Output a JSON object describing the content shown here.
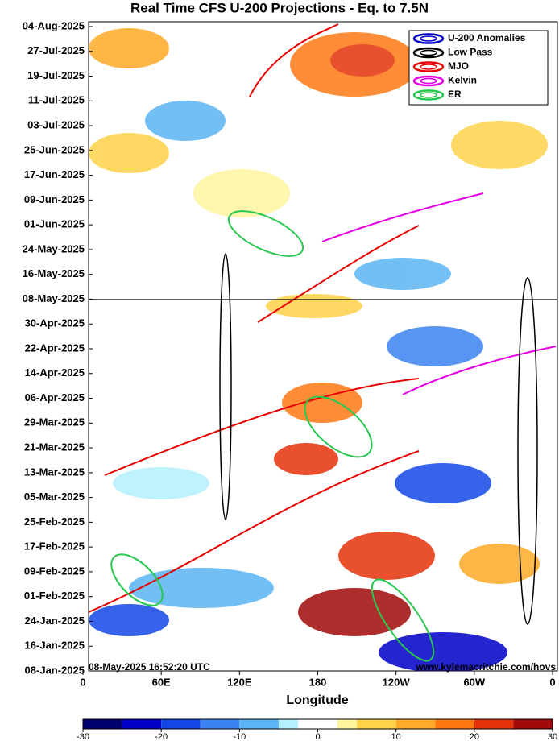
{
  "chart_data": {
    "type": "hovmoller",
    "title": "Real Time CFS U-200 Projections - Eq. to 7.5N",
    "x_label": "Longitude",
    "xlim": [
      0,
      360
    ],
    "xticks": [
      0,
      {
        "value": 60,
        "label": "60E"
      },
      {
        "value": 120,
        "label": "120E"
      },
      180,
      {
        "value": 240,
        "label": "120W"
      },
      {
        "value": 300,
        "label": "60W"
      },
      {
        "value": 360,
        "label": "0"
      }
    ],
    "categories": [
      "04-Aug-2025",
      "27-Jul-2025",
      "19-Jul-2025",
      "11-Jul-2025",
      "03-Jul-2025",
      "25-Jun-2025",
      "17-Jun-2025",
      "09-Jun-2025",
      "01-Jun-2025",
      "24-May-2025",
      "16-May-2025",
      "08-May-2025",
      "30-Apr-2025",
      "22-Apr-2025",
      "14-Apr-2025",
      "06-Apr-2025",
      "29-Mar-2025",
      "21-Mar-2025",
      "13-Mar-2025",
      "05-Mar-2025",
      "25-Feb-2025",
      "17-Feb-2025",
      "09-Feb-2025",
      "01-Feb-2025",
      "24-Jan-2025",
      "16-Jan-2025",
      "08-Jan-2025"
    ],
    "legend": [
      {
        "name": "U-200 Anomalies",
        "color": "#0000c8"
      },
      {
        "name": "Low Pass",
        "color": "#000000"
      },
      {
        "name": "MJO",
        "color": "#e60000"
      },
      {
        "name": "Kelvin",
        "color": "#e600e6"
      },
      {
        "name": "ER",
        "color": "#28c850"
      }
    ],
    "annotations": [
      "08-May-2025 16:52:20 UTC",
      "www.kylemacritchie.com/hovs"
    ],
    "colorbar": {
      "bins": [
        -30,
        -25,
        -20,
        -15,
        -10,
        -5,
        -2.5,
        2.5,
        5,
        10,
        15,
        20,
        25,
        30
      ],
      "colors": [
        "#00006e",
        "#0000c8",
        "#1446e6",
        "#3c82f0",
        "#5ab4f5",
        "#b4f0ff",
        "#ffffff",
        "#fff5a0",
        "#ffd24a",
        "#ffaa28",
        "#ff7814",
        "#e6320a",
        "#a00a0a"
      ],
      "ticks": [
        -30,
        -20,
        -10,
        0,
        10,
        20,
        30
      ]
    }
  }
}
